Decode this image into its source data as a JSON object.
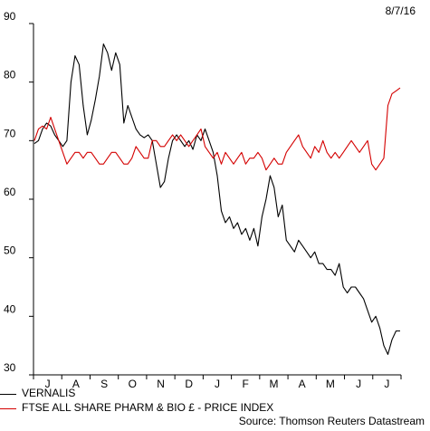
{
  "date_label": "8/7/16",
  "source": "Source: Thomson Reuters Datastream",
  "chart_data": {
    "type": "line",
    "x_tick_labels": [
      "J",
      "A",
      "S",
      "O",
      "N",
      "D",
      "J",
      "F",
      "M",
      "A",
      "M",
      "J",
      "J"
    ],
    "y_ticks": [
      30,
      40,
      50,
      60,
      70,
      80,
      90
    ],
    "ylim": [
      30,
      90
    ],
    "grid": false,
    "legend_position": "bottom-left",
    "series": [
      {
        "name": "VERNALIS",
        "color": "#000000",
        "values": [
          69.5,
          70,
          72,
          73,
          72.5,
          71,
          70,
          69,
          70,
          80,
          84.5,
          83,
          76,
          71,
          73.5,
          77,
          81,
          86.5,
          85,
          82,
          85,
          83,
          73,
          76,
          74,
          72,
          71,
          70.5,
          71,
          70,
          66,
          62,
          63,
          67,
          70,
          71,
          70,
          69,
          70,
          68.5,
          71,
          70,
          72,
          70,
          68,
          64,
          58,
          56,
          57,
          55,
          56,
          54,
          55,
          53,
          55,
          52,
          57,
          60,
          64,
          62,
          57,
          59,
          53,
          52,
          51,
          53,
          52,
          51,
          50,
          51,
          49,
          49,
          48,
          48,
          47,
          49,
          45,
          44,
          45,
          45,
          44,
          43,
          41,
          39,
          40,
          38,
          35,
          33.5,
          36,
          37.5,
          37.5
        ]
      },
      {
        "name": "FTSE ALL SHARE PHARM & BIO £ - PRICE INDEX",
        "color": "#d40000",
        "values": [
          70,
          72,
          72.5,
          72,
          74,
          72,
          70,
          68,
          66,
          67,
          68,
          68,
          67,
          68,
          68,
          67,
          66,
          66,
          67,
          68,
          68,
          67,
          66,
          66,
          67,
          69,
          68,
          67,
          67,
          70,
          70,
          69,
          69,
          70,
          71,
          70,
          71,
          70,
          69,
          70,
          71,
          72,
          69,
          68,
          67,
          68,
          66,
          68,
          67,
          66,
          67,
          68,
          66,
          67,
          67,
          68,
          67,
          65,
          66,
          67,
          66,
          66,
          68,
          69,
          70,
          71,
          69,
          68,
          67,
          69,
          68,
          70,
          68,
          67,
          68,
          67,
          68,
          69,
          70,
          69,
          68,
          69,
          70,
          66,
          65,
          66,
          67,
          76,
          78,
          78.5,
          79
        ]
      }
    ]
  }
}
